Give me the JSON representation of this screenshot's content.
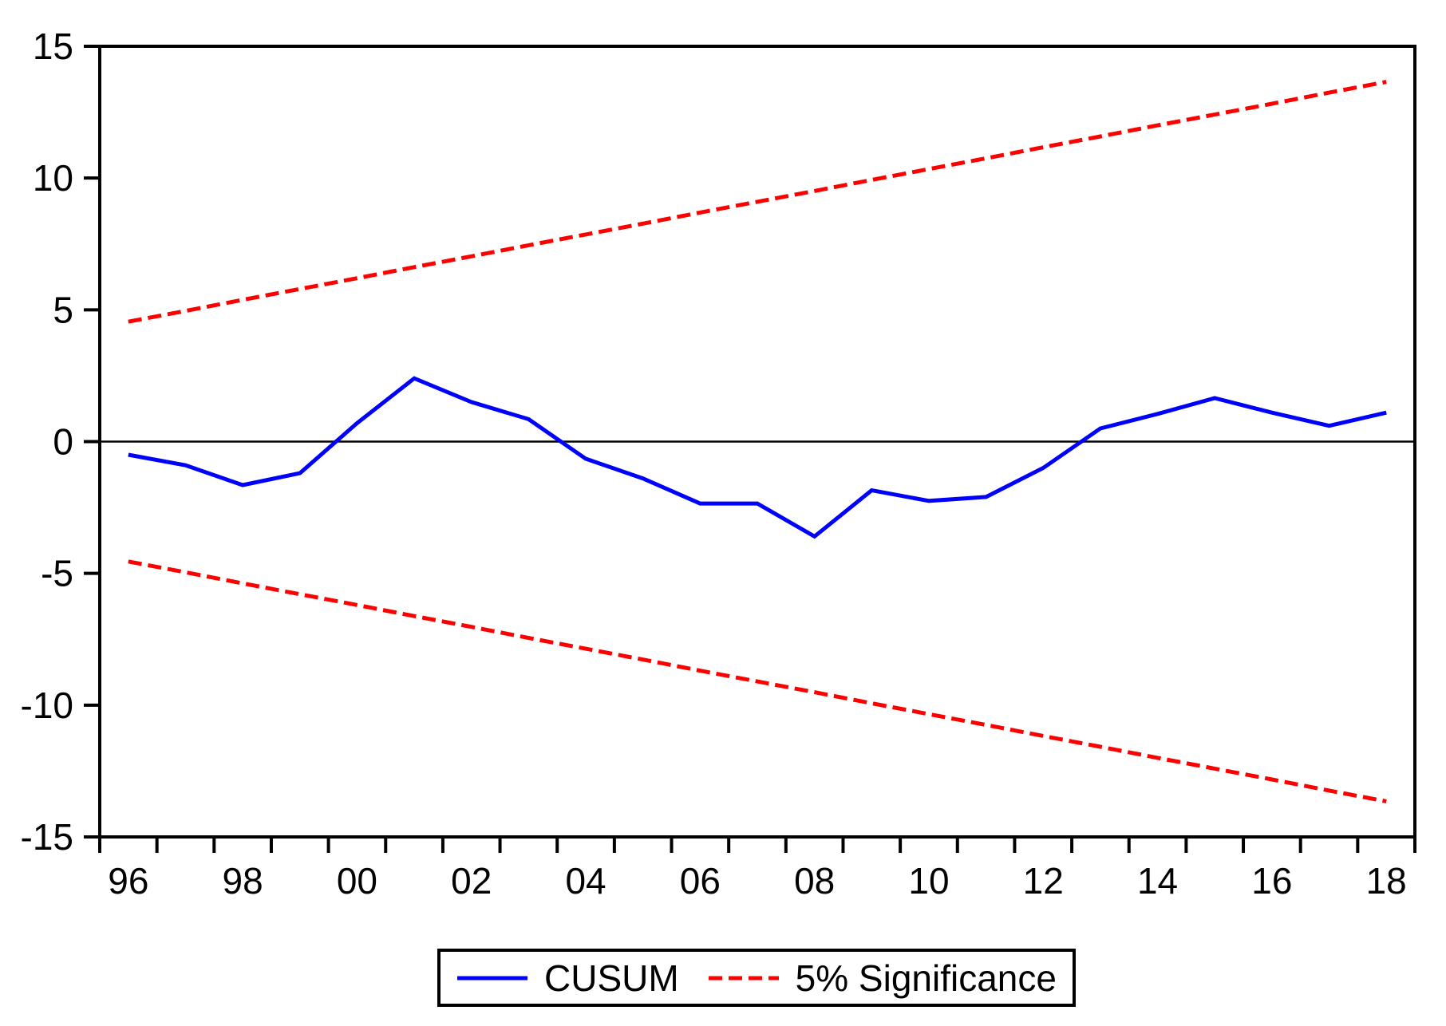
{
  "figure": {
    "background_color": "#ffffff",
    "plot_border_color": "#000000"
  },
  "chart_data": {
    "type": "line",
    "title": "",
    "xlabel": "",
    "ylabel": "",
    "x": [
      1996,
      1997,
      1998,
      1999,
      2000,
      2001,
      2002,
      2003,
      2004,
      2005,
      2006,
      2007,
      2008,
      2009,
      2010,
      2011,
      2012,
      2013,
      2014,
      2015,
      2016,
      2017,
      2018
    ],
    "x_axis": {
      "tick_every_years": 1,
      "label_every_years": 2,
      "tick_labels": [
        "96",
        "98",
        "00",
        "02",
        "04",
        "06",
        "08",
        "10",
        "12",
        "14",
        "16",
        "18"
      ]
    },
    "y_axis": {
      "min": -15,
      "max": 15,
      "ticks": [
        -15,
        -10,
        -5,
        0,
        5,
        10,
        15
      ],
      "tick_labels": [
        "-15",
        "-10",
        "-5",
        "0",
        "5",
        "10",
        "15"
      ]
    },
    "grid": false,
    "zero_line": true,
    "series": [
      {
        "name": "CUSUM",
        "color": "#0000ff",
        "line_style": "solid",
        "line_width": 5,
        "values": [
          -0.5,
          -0.9,
          -1.65,
          -1.2,
          0.7,
          2.4,
          1.5,
          0.85,
          -0.65,
          -1.4,
          -2.35,
          -2.35,
          -3.6,
          -1.85,
          -2.25,
          -2.1,
          -1.0,
          0.5,
          1.05,
          1.65,
          1.1,
          0.6,
          1.1
        ]
      },
      {
        "name": "5% Significance (upper bound)",
        "color": "#ff0000",
        "line_style": "dashed",
        "line_width": 5,
        "values": [
          4.55,
          4.96,
          5.38,
          5.79,
          6.2,
          6.62,
          7.03,
          7.45,
          7.86,
          8.27,
          8.69,
          9.1,
          9.51,
          9.93,
          10.34,
          10.75,
          11.17,
          11.58,
          12.0,
          12.41,
          12.82,
          13.24,
          13.65
        ]
      },
      {
        "name": "5% Significance (lower bound)",
        "color": "#ff0000",
        "line_style": "dashed",
        "line_width": 5,
        "values": [
          -4.55,
          -4.96,
          -5.38,
          -5.79,
          -6.2,
          -6.62,
          -7.03,
          -7.45,
          -7.86,
          -8.27,
          -8.69,
          -9.1,
          -9.51,
          -9.93,
          -10.34,
          -10.75,
          -11.17,
          -11.58,
          -12.0,
          -12.41,
          -12.82,
          -13.24,
          -13.65
        ]
      }
    ],
    "legend": {
      "position": "bottom-center",
      "border": true,
      "entries": [
        {
          "label": "CUSUM",
          "color": "#0000ff",
          "line_style": "solid"
        },
        {
          "label": "5% Significance",
          "color": "#ff0000",
          "line_style": "dashed"
        }
      ]
    }
  }
}
